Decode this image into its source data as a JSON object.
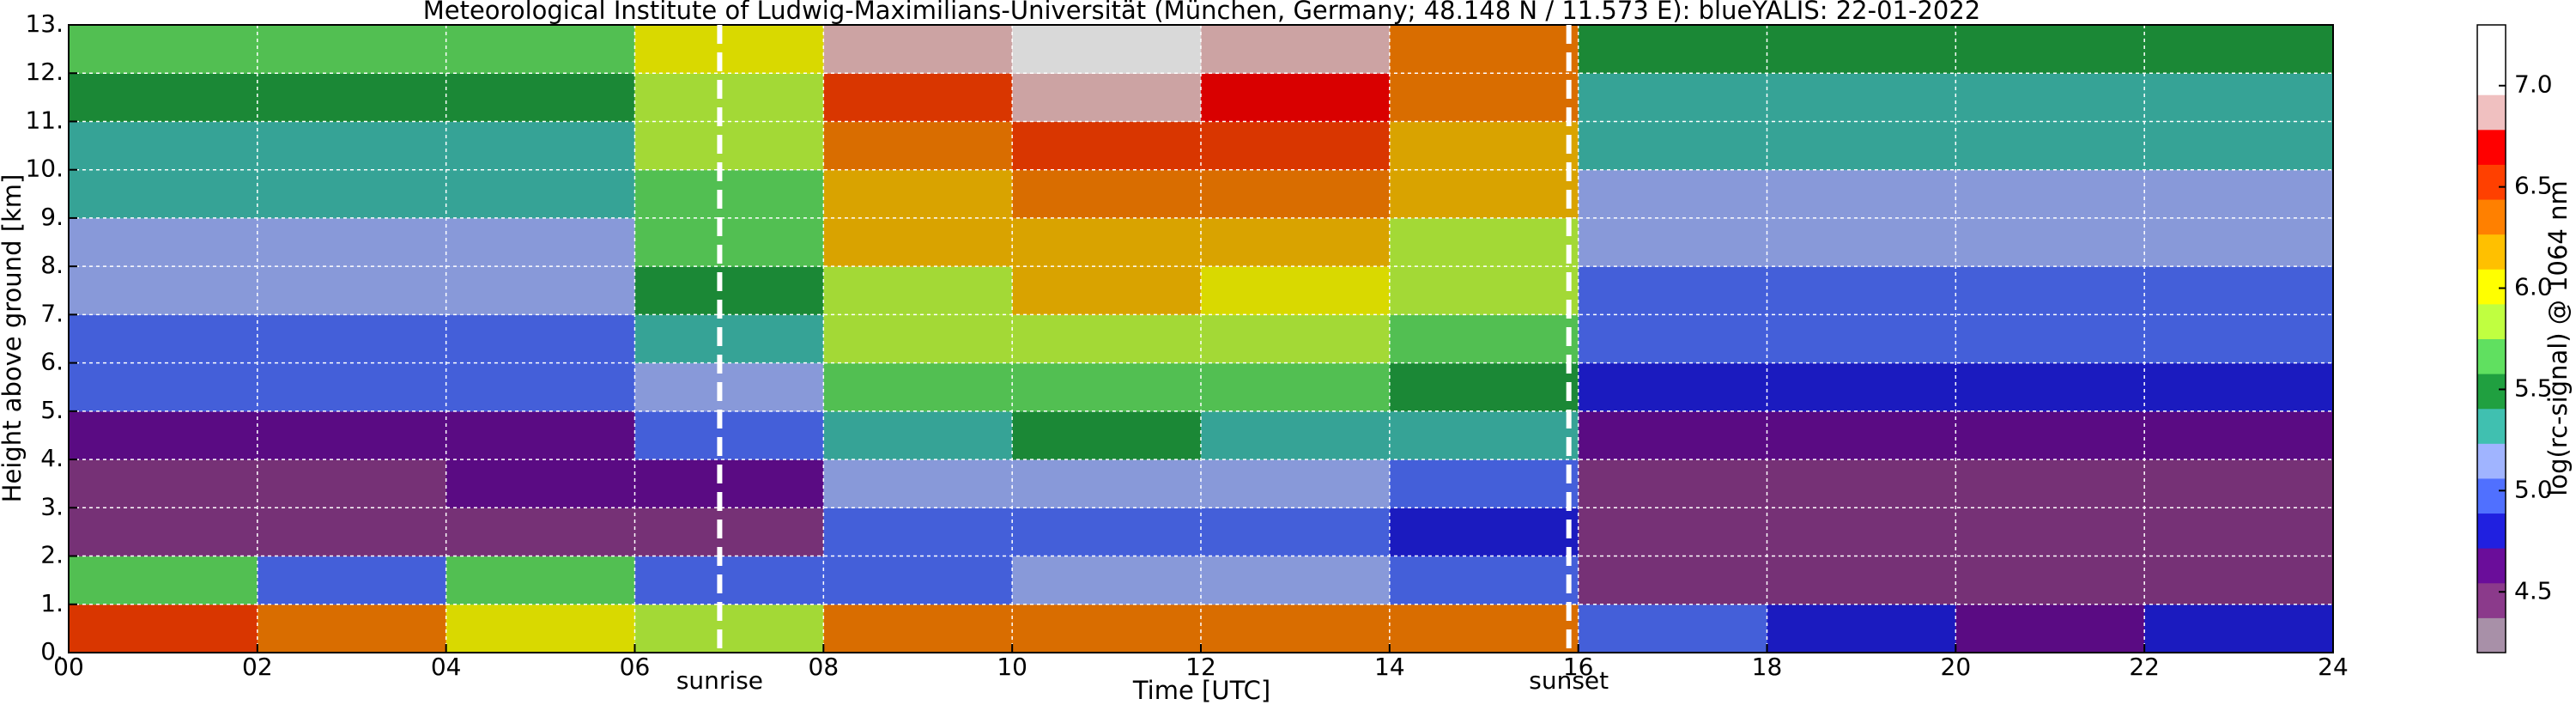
{
  "chart_data": {
    "type": "heatmap",
    "title": "Meteorological Institute of Ludwig-Maximilians-Universität (München, Germany; 48.148 N / 11.573 E):    blueYALIS: 22-01-2022",
    "xlabel": "Time [UTC]",
    "ylabel": "Height above ground [km]",
    "colorbar_label": "log(rc-signal) @ 1064 nm",
    "xbins": [
      0,
      2,
      4,
      6,
      8,
      10,
      12,
      14,
      16,
      18,
      20,
      22,
      24
    ],
    "ybins": [
      0,
      1,
      2,
      3,
      4,
      5,
      6,
      7,
      8,
      9,
      10,
      11,
      12,
      13
    ],
    "z": [
      [
        6.6,
        6.4,
        6.0,
        5.8,
        6.3,
        6.4,
        6.4,
        6.3,
        5.0,
        4.8,
        4.7,
        4.8
      ],
      [
        5.6,
        5.0,
        5.6,
        5.0,
        5.0,
        5.2,
        5.1,
        4.9,
        4.4,
        4.4,
        4.4,
        4.4
      ],
      [
        4.4,
        4.4,
        4.5,
        4.5,
        4.9,
        5.0,
        5.0,
        4.8,
        4.4,
        4.4,
        4.4,
        4.4
      ],
      [
        4.5,
        4.5,
        4.6,
        4.7,
        5.1,
        5.2,
        5.2,
        5.0,
        4.5,
        4.5,
        4.5,
        4.5
      ],
      [
        4.7,
        4.7,
        4.7,
        5.0,
        5.4,
        5.5,
        5.4,
        5.3,
        4.6,
        4.6,
        4.6,
        4.6
      ],
      [
        4.9,
        4.9,
        4.9,
        5.2,
        5.6,
        5.7,
        5.6,
        5.5,
        4.8,
        4.8,
        4.8,
        4.8
      ],
      [
        5.0,
        5.0,
        5.0,
        5.4,
        5.8,
        5.9,
        5.8,
        5.7,
        4.9,
        4.9,
        4.9,
        4.9
      ],
      [
        5.1,
        5.1,
        5.1,
        5.5,
        5.9,
        6.1,
        6.0,
        5.8,
        5.0,
        5.0,
        5.0,
        5.0
      ],
      [
        5.2,
        5.2,
        5.2,
        5.6,
        6.1,
        6.2,
        6.1,
        5.9,
        5.1,
        5.1,
        5.1,
        5.1
      ],
      [
        5.3,
        5.3,
        5.3,
        5.7,
        6.2,
        6.4,
        6.3,
        6.1,
        5.2,
        5.2,
        5.2,
        5.2
      ],
      [
        5.4,
        5.4,
        5.4,
        5.8,
        6.4,
        6.6,
        6.5,
        6.2,
        5.3,
        5.3,
        5.3,
        5.3
      ],
      [
        5.5,
        5.5,
        5.5,
        5.9,
        6.6,
        6.8,
        6.7,
        6.3,
        5.4,
        5.4,
        5.4,
        5.4
      ],
      [
        5.6,
        5.6,
        5.6,
        6.0,
        6.8,
        7.0,
        6.9,
        6.4,
        5.5,
        5.5,
        5.5,
        5.5
      ]
    ],
    "xlim": [
      0,
      24
    ],
    "ylim": [
      0,
      13
    ],
    "xticks": [
      {
        "value": 0,
        "label": "00"
      },
      {
        "value": 2,
        "label": "02"
      },
      {
        "value": 4,
        "label": "04"
      },
      {
        "value": 6,
        "label": "06"
      },
      {
        "value": 8,
        "label": "08"
      },
      {
        "value": 10,
        "label": "10"
      },
      {
        "value": 12,
        "label": "12"
      },
      {
        "value": 14,
        "label": "14"
      },
      {
        "value": 16,
        "label": "16"
      },
      {
        "value": 18,
        "label": "18"
      },
      {
        "value": 20,
        "label": "20"
      },
      {
        "value": 22,
        "label": "22"
      },
      {
        "value": 24,
        "label": "24"
      }
    ],
    "yticks": [
      {
        "value": 0,
        "label": "0."
      },
      {
        "value": 1,
        "label": "1."
      },
      {
        "value": 2,
        "label": "2."
      },
      {
        "value": 3,
        "label": "3."
      },
      {
        "value": 4,
        "label": "4."
      },
      {
        "value": 5,
        "label": "5."
      },
      {
        "value": 6,
        "label": "6."
      },
      {
        "value": 7,
        "label": "7."
      },
      {
        "value": 8,
        "label": "8."
      },
      {
        "value": 9,
        "label": "9."
      },
      {
        "value": 10,
        "label": "10."
      },
      {
        "value": 11,
        "label": "11."
      },
      {
        "value": 12,
        "label": "12."
      },
      {
        "value": 13,
        "label": "13."
      }
    ],
    "clim": [
      4.2,
      7.3
    ],
    "cticks": [
      4.5,
      {
        "value": 5,
        "label": "5.0"
      },
      5.5,
      {
        "value": 6,
        "label": "6.0"
      },
      6.5,
      {
        "value": 7,
        "label": "7.0"
      }
    ],
    "colorscale": [
      "#a890a8",
      "#8b3a8b",
      "#6a0d9a",
      "#2020e0",
      "#5070ff",
      "#a0b4ff",
      "#40c0b0",
      "#20a040",
      "#60e060",
      "#c0ff40",
      "#ffff00",
      "#ffc000",
      "#ff8000",
      "#ff4000",
      "#ff0000",
      "#f0c0c0",
      "#ffffff",
      "#ffffff"
    ],
    "grid": true,
    "annotations": [
      {
        "text": "sunrise",
        "x": 6.9
      },
      {
        "text": "sunset",
        "x": 15.9
      }
    ]
  }
}
